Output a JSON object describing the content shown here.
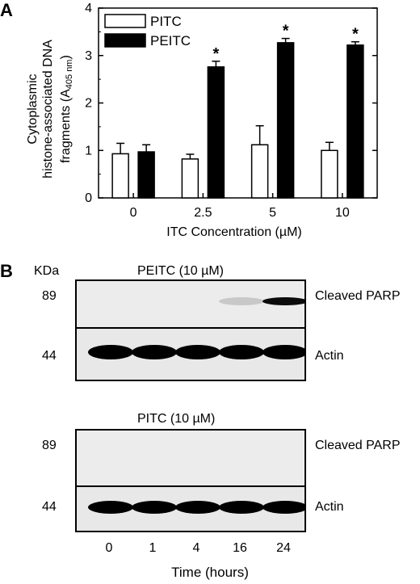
{
  "panel_a": {
    "letter": "A",
    "ylabel": {
      "line1": "Cytoplasmic",
      "line2": "histone-associated DNA",
      "line3": "fragments (A",
      "sub": "405 nm",
      "close": ")"
    },
    "chart_data": {
      "type": "bar",
      "categories": [
        "0",
        "2.5",
        "5",
        "10"
      ],
      "series": [
        {
          "name": "PITC",
          "values": [
            0.93,
            0.82,
            1.12,
            1.0
          ],
          "errors": [
            0.22,
            0.1,
            0.4,
            0.17
          ],
          "color": "#ffffff"
        },
        {
          "name": "PEITC",
          "values": [
            0.97,
            2.76,
            3.27,
            3.22
          ],
          "errors": [
            0.15,
            0.12,
            0.09,
            0.07
          ],
          "color": "#000000"
        }
      ],
      "significance": [
        "",
        "*",
        "*",
        "*"
      ],
      "xlabel": "ITC Concentration (µM)",
      "ylim": [
        0,
        4
      ],
      "yticks": [
        "0",
        "1",
        "2",
        "3",
        "4"
      ],
      "legend_position": "top-left",
      "grid": false
    }
  },
  "panel_b": {
    "letter": "B",
    "kda_label": "KDa",
    "blot1": {
      "title": "PEITC (10 µM)",
      "top_mw": "89",
      "top_label": "Cleaved PARP",
      "top_band_intensity": [
        0,
        0,
        0,
        0.15,
        0.95
      ],
      "bottom_mw": "44",
      "bottom_label": "Actin"
    },
    "blot2": {
      "title": "PITC (10 µM)",
      "top_mw": "89",
      "top_label": "Cleaved PARP",
      "top_band_intensity": [
        0,
        0,
        0,
        0,
        0
      ],
      "bottom_mw": "44",
      "bottom_label": "Actin"
    },
    "time_points": [
      "0",
      "1",
      "4",
      "16",
      "24"
    ],
    "time_label": "Time (hours)"
  }
}
